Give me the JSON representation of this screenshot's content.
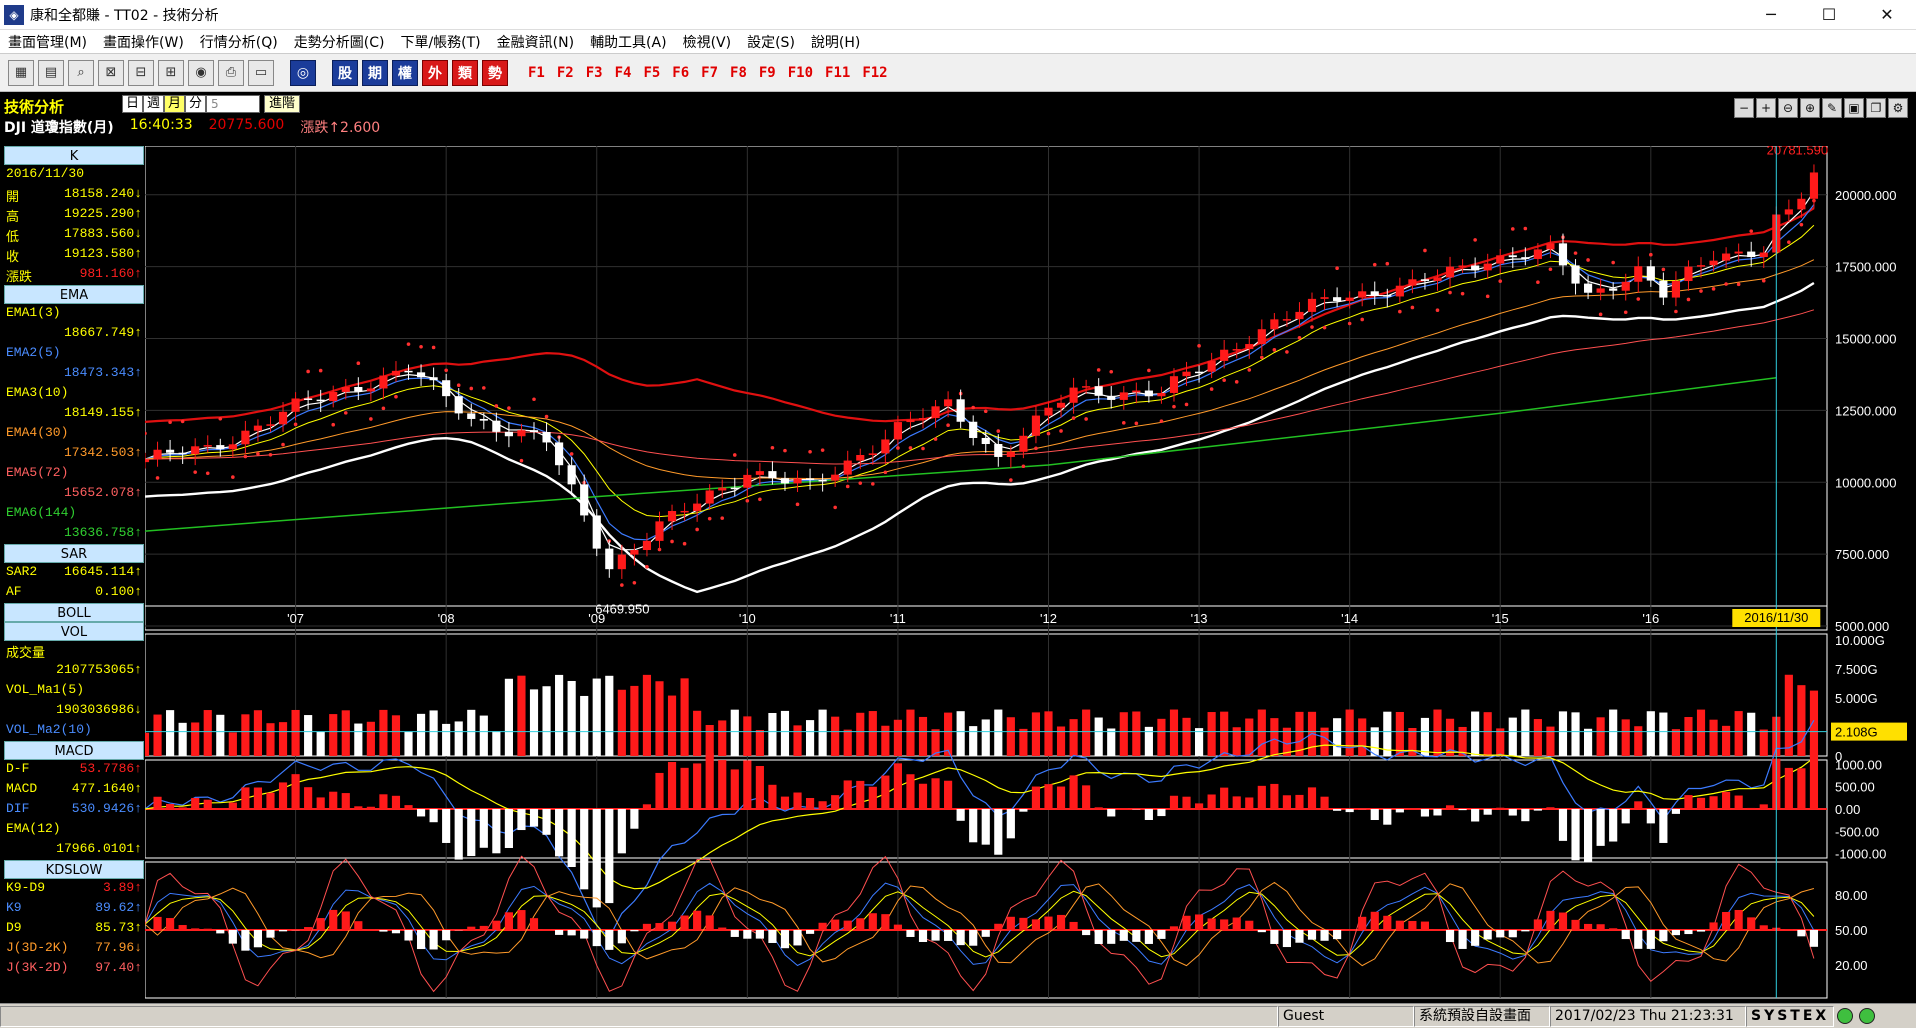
{
  "window": {
    "title": "康和全都賺 - TT02 - 技術分析",
    "minimize": "─",
    "maximize": "☐",
    "close": "✕"
  },
  "menu": [
    "畫面管理(M)",
    "畫面操作(W)",
    "行情分析(Q)",
    "走勢分析圖(C)",
    "下單/帳務(T)",
    "金融資訊(N)",
    "輔助工具(A)",
    "檢視(V)",
    "設定(S)",
    "說明(H)"
  ],
  "toolbar": {
    "blue_buttons": [
      "股",
      "期",
      "權",
      "外",
      "類",
      "勢"
    ],
    "fkeys": [
      "F1",
      "F2",
      "F3",
      "F4",
      "F5",
      "F6",
      "F7",
      "F8",
      "F9",
      "F10",
      "F11",
      "F12"
    ]
  },
  "header": {
    "label": "技術分析",
    "tabs": [
      "日",
      "週",
      "月",
      "分"
    ],
    "active_tab": "月",
    "period_value": "5",
    "advanced": "進階",
    "symbol": "DJI  道瓊指數(月)",
    "time": "16:40:33",
    "price": "20775.600",
    "change": "漲跌↑2.600"
  },
  "left_panel": {
    "k": {
      "head": "K",
      "date": "2016/11/30",
      "rows": [
        {
          "label": "開",
          "value": "18158.240↓"
        },
        {
          "label": "高",
          "value": "19225.290↑"
        },
        {
          "label": "低",
          "value": "17883.560↓"
        },
        {
          "label": "收",
          "value": "19123.580↑"
        },
        {
          "label": "漲跌",
          "value": "981.160↑"
        }
      ]
    },
    "ema": {
      "head": "EMA",
      "rows": [
        {
          "label": "EMA1(3)",
          "value": "18667.749↑"
        },
        {
          "label": "EMA2(5)",
          "value": "18473.343↑"
        },
        {
          "label": "EMA3(10)",
          "value": "18149.155↑"
        },
        {
          "label": "EMA4(30)",
          "value": "17342.503↑"
        },
        {
          "label": "EMA5(72)",
          "value": "15652.078↑"
        },
        {
          "label": "EMA6(144)",
          "value": "13636.758↑"
        }
      ]
    },
    "sar": {
      "head": "SAR",
      "rows": [
        {
          "label": "SAR2",
          "value": "16645.114↑"
        },
        {
          "label": "AF",
          "value": "0.100↑"
        }
      ]
    },
    "boll": {
      "head": "BOLL"
    },
    "vol": {
      "head": "VOL",
      "rows": [
        {
          "label": "成交量",
          "value": ""
        },
        {
          "label": "",
          "value": "2107753065↑"
        },
        {
          "label": "VOL_Ma1(5)",
          "value": ""
        },
        {
          "label": "",
          "value": "1903036986↓"
        },
        {
          "label": "VOL_Ma2(10)",
          "value": ""
        }
      ]
    },
    "macd": {
      "head": "MACD",
      "rows": [
        {
          "label": "D-F",
          "value": "53.7786↑"
        },
        {
          "label": "MACD",
          "value": "477.1640↑"
        },
        {
          "label": "DIF",
          "value": "530.9426↑"
        },
        {
          "label": "EMA(12)",
          "value": ""
        },
        {
          "label": "",
          "value": "17966.0101↑"
        }
      ]
    },
    "kd": {
      "head": "KDSLOW",
      "rows": [
        {
          "label": "K9-D9",
          "value": "3.89↑"
        },
        {
          "label": "K9",
          "value": "89.62↑"
        },
        {
          "label": "D9",
          "value": "85.73↑"
        },
        {
          "label": "J(3D-2K)",
          "value": "77.96↓"
        },
        {
          "label": "J(3K-2D)",
          "value": "97.40↑"
        }
      ]
    }
  },
  "chart": {
    "price_axis": [
      "20000.000",
      "17500.000",
      "15000.000",
      "12500.000",
      "10000.000",
      "7500.000",
      "5000.000"
    ],
    "year_axis": [
      "'07",
      "'08",
      "'09",
      "'10",
      "'11",
      "'12",
      "'13",
      "'14",
      "'15",
      "'16"
    ],
    "cursor_date": "2016/11/30",
    "high_label": "20781.590",
    "low_label": "6469.950",
    "vol_axis": [
      "10.000G",
      "7.500G",
      "5.000G",
      "0"
    ],
    "vol_current": "2.108G",
    "macd_axis": [
      "1000.00",
      "500.00",
      "0.00",
      "-500.00",
      "-1000.00"
    ],
    "kd_axis": [
      "80.00",
      "50.00",
      "20.00"
    ]
  },
  "chart_data": {
    "type": "line",
    "x_range": [
      "2006/01",
      "2017/02"
    ],
    "ylim": [
      5000,
      21000
    ],
    "series": [
      {
        "name": "K",
        "x": [
          "2006/01",
          "2006/06",
          "2007/01",
          "2007/06",
          "2007/10",
          "2008/03",
          "2008/09",
          "2009/02",
          "2009/06",
          "2010/01",
          "2010/06",
          "2011/01",
          "2011/05",
          "2011/09",
          "2012/03",
          "2012/10",
          "2013/05",
          "2013/12",
          "2014/06",
          "2014/12",
          "2015/05",
          "2015/08",
          "2015/12",
          "2016/02",
          "2016/06",
          "2016/10",
          "2016/11",
          "2017/01",
          "2017/02"
        ],
        "y": [
          10800,
          11150,
          12600,
          13400,
          13900,
          12250,
          11400,
          7100,
          8450,
          10400,
          9800,
          11900,
          12650,
          10900,
          13200,
          13100,
          15100,
          16500,
          16800,
          17800,
          18000,
          16500,
          17400,
          16500,
          17900,
          18150,
          19123,
          19860,
          20775
        ]
      },
      {
        "name": "EMA6(144)",
        "x": [
          "2006/01",
          "2009/01",
          "2012/01",
          "2015/01",
          "2016/11"
        ],
        "y": [
          8300,
          9500,
          10600,
          12400,
          13636
        ]
      }
    ],
    "high_value": 20781.59,
    "low_value": 6469.95,
    "current": {
      "date": "2016/11/30",
      "open": 18158.24,
      "high": 19225.29,
      "low": 17883.56,
      "close": 19123.58,
      "change": 981.16
    }
  }
}
